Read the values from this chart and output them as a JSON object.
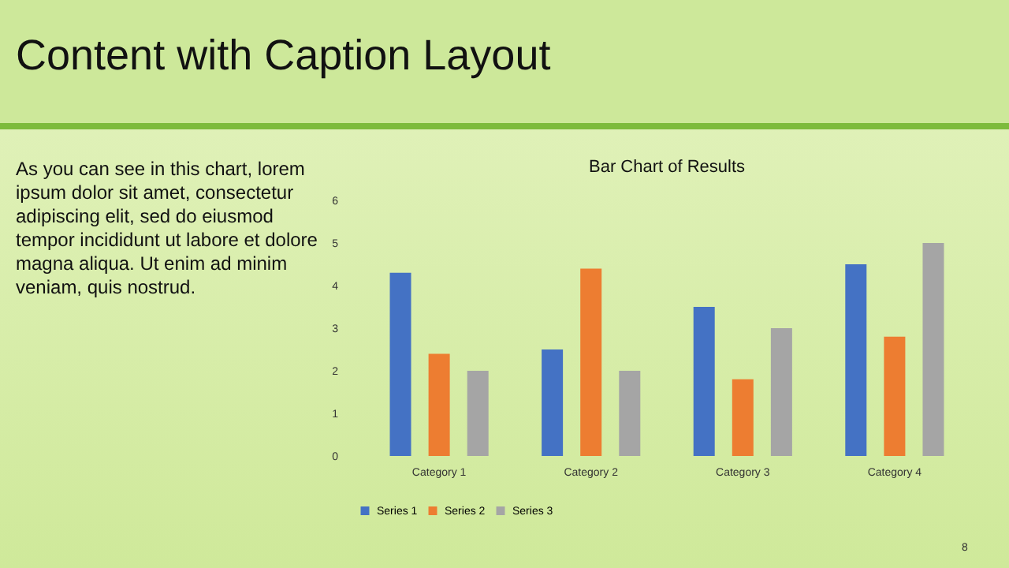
{
  "chart_data": {
    "type": "bar",
    "title": "Bar Chart of Results",
    "categories": [
      "Category 1",
      "Category 2",
      "Category 3",
      "Category 4"
    ],
    "series": [
      {
        "name": "Series 1",
        "color": "#4472c4",
        "values": [
          4.3,
          2.5,
          3.5,
          4.5
        ]
      },
      {
        "name": "Series 2",
        "color": "#ed7d31",
        "values": [
          2.4,
          4.4,
          1.8,
          2.8
        ]
      },
      {
        "name": "Series 3",
        "color": "#a5a5a5",
        "values": [
          2,
          2,
          3,
          5
        ]
      }
    ],
    "ylim": [
      0,
      6
    ],
    "yticks": [
      0,
      1,
      2,
      3,
      4,
      5,
      6
    ],
    "grid": false,
    "legend": "bottom",
    "annotations": [
      "Content with Caption Layout",
      "As you can see in this chart, lorem ipsum dolor sit amet, consectetur adipiscing elit, sed do eiusmod tempor incididunt ut labore et dolore magna aliqua. Ut enim ad minim veniam, quis nostrud.",
      "8"
    ]
  }
}
